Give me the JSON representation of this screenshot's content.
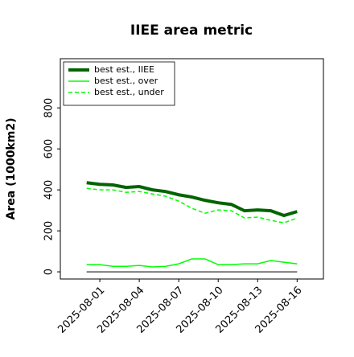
{
  "chart_data": {
    "type": "line",
    "title": "IIEE area metric",
    "y_label": "Area (1000km2)",
    "x": [
      "2025-07-31",
      "2025-08-01",
      "2025-08-02",
      "2025-08-03",
      "2025-08-04",
      "2025-08-05",
      "2025-08-06",
      "2025-08-07",
      "2025-08-08",
      "2025-08-09",
      "2025-08-10",
      "2025-08-11",
      "2025-08-12",
      "2025-08-13",
      "2025-08-14",
      "2025-08-15",
      "2025-08-16"
    ],
    "series": [
      {
        "name": "best est., IIEE",
        "color": "#006400",
        "linestyle": "solid",
        "linewidth": 4,
        "values": [
          435,
          427,
          424,
          412,
          416,
          400,
          392,
          376,
          365,
          349,
          337,
          329,
          298,
          302,
          298,
          275,
          294
        ]
      },
      {
        "name": "best est., over",
        "color": "#00ff00",
        "linestyle": "solid",
        "linewidth": 1.5,
        "values": [
          35,
          35,
          27,
          27,
          31,
          24,
          27,
          39,
          63,
          63,
          35,
          35,
          39,
          39,
          55,
          47,
          39
        ]
      },
      {
        "name": "best est., under",
        "color": "#00ff00",
        "linestyle": "dashed",
        "linewidth": 1.5,
        "values": [
          408,
          400,
          400,
          388,
          392,
          380,
          369,
          345,
          310,
          286,
          302,
          298,
          263,
          267,
          251,
          239,
          263
        ]
      },
      {
        "color": "#555555",
        "linestyle": "solid",
        "linewidth": 1.5,
        "values": [
          0,
          0,
          0,
          0,
          0,
          0,
          0,
          0,
          0,
          0,
          0,
          0,
          0,
          0,
          0,
          0,
          0
        ]
      }
    ],
    "xlim": [
      "2025-07-29",
      "2025-08-18"
    ],
    "xticks": [
      "2025-08-01",
      "2025-08-04",
      "2025-08-07",
      "2025-08-10",
      "2025-08-13",
      "2025-08-16"
    ],
    "ylim": [
      -35,
      1040
    ],
    "yticks": [
      0,
      200,
      400,
      600,
      800
    ],
    "legend": "upper left",
    "grid": false
  }
}
